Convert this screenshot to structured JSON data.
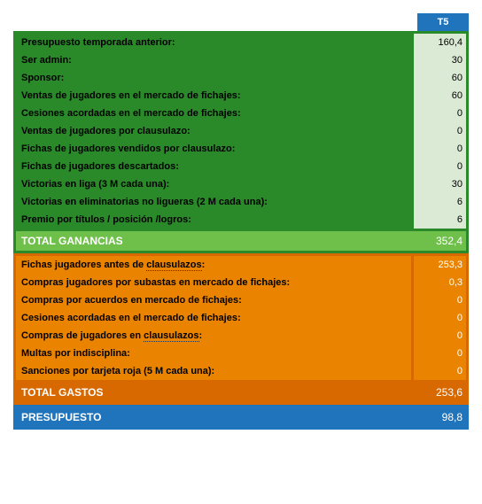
{
  "column_header": "T5",
  "income": {
    "rows": [
      {
        "label": "Presupuesto temporada anterior:",
        "value": "160,4"
      },
      {
        "label": "Ser admin:",
        "value": "30"
      },
      {
        "label": "Sponsor:",
        "value": "60"
      },
      {
        "label": "Ventas de jugadores en el mercado de fichajes:",
        "value": "60"
      },
      {
        "label": "Cesiones acordadas en el mercado de fichajes:",
        "value": "0"
      },
      {
        "label": "Ventas de jugadores por clausulazo:",
        "value": "0"
      },
      {
        "label": "Fichas de jugadores vendidos por clausulazo:",
        "value": "0"
      },
      {
        "label": "Fichas de jugadores descartados:",
        "value": "0"
      },
      {
        "label": "Victorias en liga (3 M cada una):",
        "value": "30"
      },
      {
        "label": "Victorias en eliminatorias no ligueras (2 M cada una):",
        "value": "6"
      },
      {
        "label": "Premio por títulos / posición /logros:",
        "value": "6"
      }
    ],
    "total_label": "TOTAL GANANCIAS",
    "total_value": "352,4"
  },
  "expense": {
    "rows": [
      {
        "label": "Fichas jugadores antes de",
        "dotted": "clausulazos",
        "suffix": ":",
        "value": "253,3"
      },
      {
        "label": "Compras jugadores por subastas en mercado de fichajes:",
        "value": "0,3"
      },
      {
        "label": "Compras por acuerdos en mercado de fichajes:",
        "value": "0"
      },
      {
        "label": "Cesiones acordadas en el mercado de fichajes:",
        "value": "0"
      },
      {
        "label": "Compras de jugadores en",
        "dotted": "clausulazos",
        "suffix": ":",
        "value": "0"
      },
      {
        "label": "Multas por indisciplina:",
        "value": "0"
      },
      {
        "label": "Sanciones por tarjeta roja (5 M cada una):",
        "value": "0"
      }
    ],
    "total_label": "TOTAL GASTOS",
    "total_value": "253,6"
  },
  "budget": {
    "label": "PRESUPUESTO",
    "value": "98,8"
  },
  "colors": {
    "header_bg": "#1f74bc",
    "income_border": "#2a8a2a",
    "income_label_bg": "#2a8a2a",
    "income_value_bg": "#dbead5",
    "income_total_bg": "#6fbf4b",
    "expense_border": "#d86800",
    "expense_label_bg": "#e98300",
    "expense_value_bg": "#e98300",
    "expense_total_bg": "#d86800",
    "budget_bg": "#1f74bc"
  }
}
